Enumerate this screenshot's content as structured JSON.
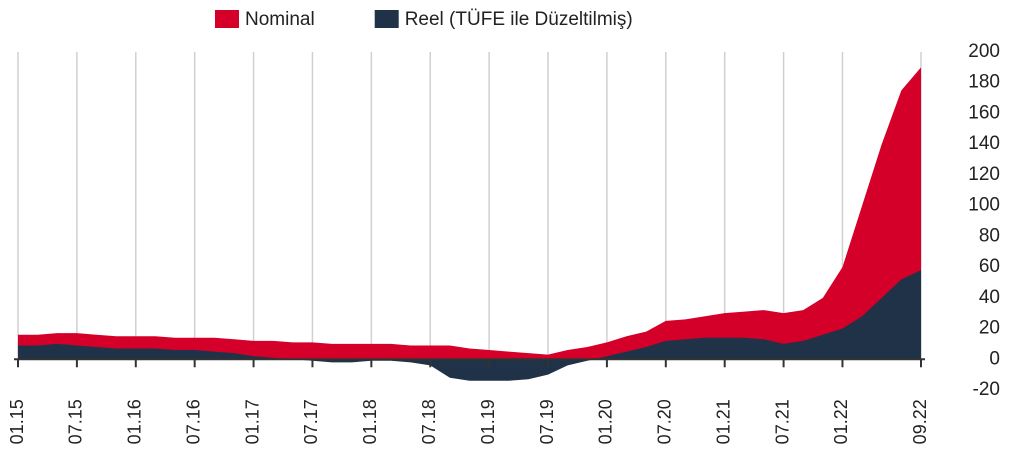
{
  "chart_data": {
    "type": "area",
    "categories": [
      "01.15",
      null,
      null,
      "07.15",
      null,
      null,
      "01.16",
      null,
      null,
      "07.16",
      null,
      null,
      "01.17",
      null,
      null,
      "07.17",
      null,
      null,
      "01.18",
      null,
      null,
      "07.18",
      null,
      null,
      "01.19",
      null,
      null,
      "07.19",
      null,
      null,
      "01.20",
      null,
      null,
      "07.20",
      null,
      null,
      "01.21",
      null,
      null,
      "07.21",
      null,
      null,
      "01.22",
      null,
      null,
      null,
      "09.22"
    ],
    "series": [
      {
        "name": "Nominal",
        "color": "#d4002a",
        "values": [
          16,
          16,
          17,
          17,
          16,
          15,
          15,
          15,
          14,
          14,
          14,
          13,
          12,
          12,
          11,
          11,
          10,
          10,
          10,
          10,
          9,
          9,
          9,
          7,
          6,
          5,
          4,
          3,
          6,
          8,
          11,
          15,
          18,
          25,
          26,
          28,
          30,
          31,
          32,
          30,
          32,
          40,
          60,
          100,
          140,
          175,
          190
        ]
      },
      {
        "name": "Reel (TÜFE ile Düzeltilmiş)",
        "color": "#1f3247",
        "values": [
          9,
          9,
          10,
          9,
          8,
          7,
          7,
          7,
          6,
          6,
          5,
          4,
          2,
          1,
          0,
          -1,
          -2,
          -2,
          -1,
          -1,
          -2,
          -4,
          -12,
          -14,
          -14,
          -14,
          -13,
          -10,
          -4,
          -1,
          2,
          5,
          8,
          12,
          13,
          14,
          14,
          14,
          13,
          10,
          12,
          16,
          20,
          28,
          40,
          52,
          58
        ]
      }
    ],
    "ylim": [
      -20,
      200
    ],
    "yticks": [
      -20,
      0,
      20,
      40,
      60,
      80,
      100,
      120,
      140,
      160,
      180,
      200
    ],
    "y_axis_side": "right",
    "grid": "x",
    "legend": "top"
  }
}
